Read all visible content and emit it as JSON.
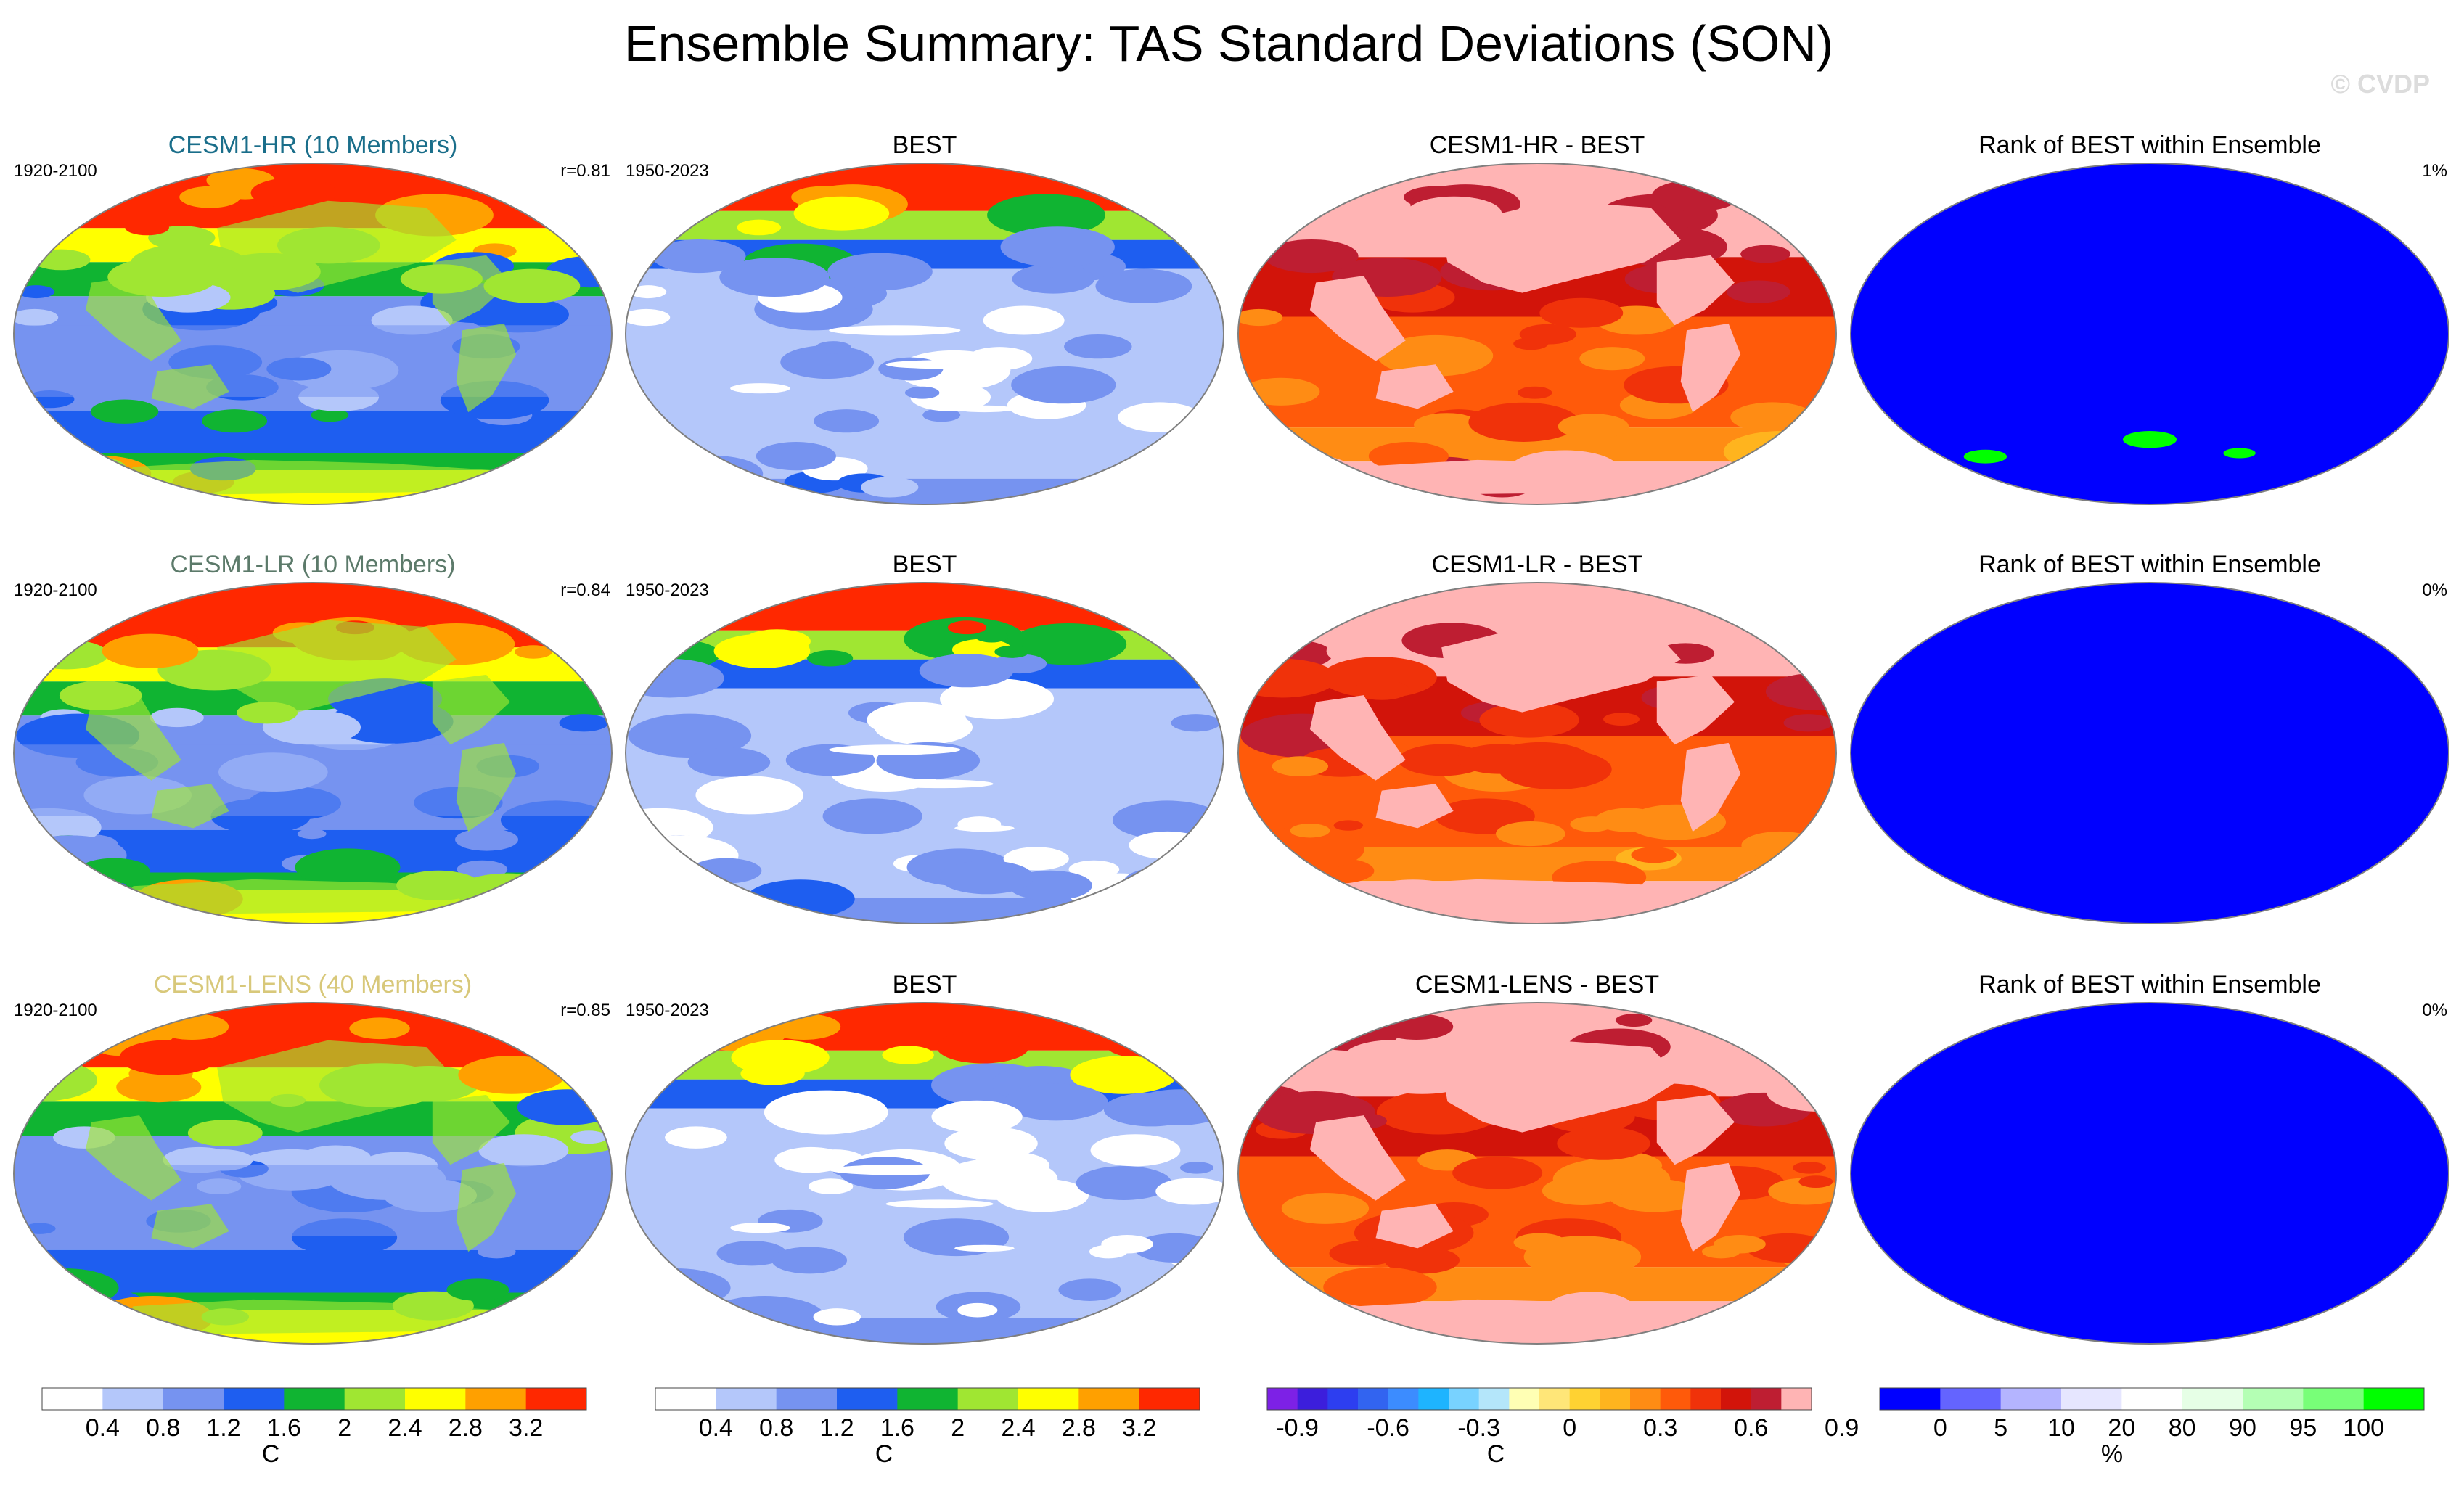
{
  "figure": {
    "title": "Ensemble Summary: TAS Standard Deviations (SON)",
    "watermark": "© CVDP"
  },
  "colors": {
    "std": [
      "#ffffff",
      "#b4c7fa",
      "#7693f0",
      "#1e5ef0",
      "#10b432",
      "#a0e632",
      "#ffff00",
      "#ffa000",
      "#ff2800"
    ],
    "diff": [
      "#7d21e6",
      "#3c1edc",
      "#2d3ef0",
      "#3264f0",
      "#3c8cff",
      "#1eb4ff",
      "#78d2ff",
      "#b4e6fa",
      "#ffffb4",
      "#ffe678",
      "#ffd232",
      "#ffb41e",
      "#ff8c14",
      "#ff5a0a",
      "#f0320a",
      "#d2140a",
      "#be1e32",
      "#ffb4b4"
    ],
    "rank": [
      "#0000ff",
      "#6464ff",
      "#b4b4ff",
      "#e6e6ff",
      "#ffffff",
      "#e6ffe6",
      "#b4ffb4",
      "#78ff78",
      "#00ff00"
    ],
    "ocean_std": "#b4c7fa",
    "coast": "#555555"
  },
  "rows": [
    {
      "model_label": "CESM1-HR (10 Members)",
      "model_label_color": "#1a6e8a",
      "model_period": "1920-2100",
      "pattern_corr": "r=0.81",
      "obs_label": "BEST",
      "obs_period": "1950-2023",
      "diff_label": "CESM1-HR - BEST",
      "rank_label": "Rank of BEST within Ensemble",
      "rank_pct": "1%"
    },
    {
      "model_label": "CESM1-LR (10 Members)",
      "model_label_color": "#5c7a6a",
      "model_period": "1920-2100",
      "pattern_corr": "r=0.84",
      "obs_label": "BEST",
      "obs_period": "1950-2023",
      "diff_label": "CESM1-LR - BEST",
      "rank_label": "Rank of BEST within Ensemble",
      "rank_pct": "0%"
    },
    {
      "model_label": "CESM1-LENS (40 Members)",
      "model_label_color": "#d8c87a",
      "model_period": "1920-2100",
      "pattern_corr": "r=0.85",
      "obs_label": "BEST",
      "obs_period": "1950-2023",
      "diff_label": "CESM1-LENS - BEST",
      "rank_label": "Rank of BEST within Ensemble",
      "rank_pct": "0%"
    }
  ],
  "chart_data": [
    {
      "type": "heatmap",
      "name": "model-std-colorbar",
      "unit": "C",
      "colors_key": "std",
      "levels": [
        0.4,
        0.8,
        1.2,
        1.6,
        2,
        2.4,
        2.8,
        3.2
      ],
      "tick_labels": [
        "0.4",
        "0.8",
        "1.2",
        "1.6",
        "2",
        "2.4",
        "2.8",
        "3.2"
      ]
    },
    {
      "type": "heatmap",
      "name": "obs-std-colorbar",
      "unit": "C",
      "colors_key": "std",
      "levels": [
        0.4,
        0.8,
        1.2,
        1.6,
        2,
        2.4,
        2.8,
        3.2
      ],
      "tick_labels": [
        "0.4",
        "0.8",
        "1.2",
        "1.6",
        "2",
        "2.4",
        "2.8",
        "3.2"
      ]
    },
    {
      "type": "heatmap",
      "name": "difference-colorbar",
      "unit": "C",
      "colors_key": "diff",
      "levels": [
        -0.9,
        -0.8,
        -0.7,
        -0.6,
        -0.5,
        -0.4,
        -0.3,
        -0.2,
        -0.1,
        0,
        0.1,
        0.2,
        0.3,
        0.4,
        0.5,
        0.6,
        0.7,
        0.8,
        0.9
      ],
      "tick_labels": [
        "-0.9",
        "-0.6",
        "-0.3",
        "0",
        "0.3",
        "0.6",
        "0.9"
      ],
      "tick_values": [
        -0.9,
        -0.6,
        -0.3,
        0,
        0.3,
        0.6,
        0.9
      ]
    },
    {
      "type": "heatmap",
      "name": "rank-colorbar",
      "unit": "%",
      "colors_key": "rank",
      "levels": [
        0,
        5,
        10,
        20,
        80,
        90,
        95,
        100
      ],
      "tick_labels": [
        "0",
        "5",
        "10",
        "20",
        "80",
        "90",
        "95",
        "100"
      ]
    }
  ]
}
